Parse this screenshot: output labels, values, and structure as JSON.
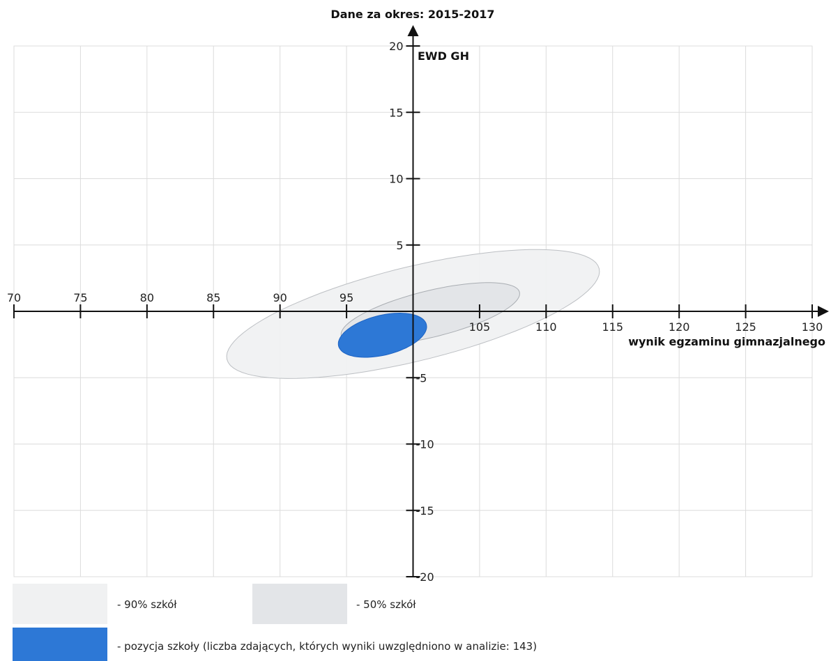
{
  "chart_data": {
    "type": "scatter",
    "title": "Dane za okres: 2015-2017",
    "xlabel": "wynik egzaminu gimnazjalnego",
    "ylabel": "EWD GH",
    "xlim": [
      70,
      130
    ],
    "ylim": [
      -20,
      20
    ],
    "x_ticks": [
      70,
      75,
      80,
      85,
      90,
      95,
      100,
      105,
      110,
      115,
      120,
      125,
      130
    ],
    "y_ticks": [
      -20,
      -15,
      -10,
      -5,
      0,
      5,
      10,
      15,
      20
    ],
    "x_tick_labels": [
      "70",
      "75",
      "80",
      "85",
      "90",
      "95",
      "",
      "105",
      "110",
      "115",
      "120",
      "125",
      "130"
    ],
    "y_tick_labels": [
      "-20",
      "-15",
      "-10",
      "-5",
      "",
      "5",
      "10",
      "15",
      "20"
    ],
    "grid": true,
    "axes_cross_at": [
      100,
      0
    ],
    "ellipses": [
      {
        "name": "- 90% szkół",
        "center": [
          100,
          -0.2
        ],
        "semi_major": 14.4,
        "semi_minor": 3.55,
        "color": "#f0f1f2",
        "stroke": "#bcbfc3"
      },
      {
        "name": "- 50% szkół",
        "center": [
          101.3,
          -0.2
        ],
        "semi_major": 6.9,
        "semi_minor": 1.75,
        "color": "#e2e4e7",
        "stroke": "#a9adb2"
      },
      {
        "name": "- pozycja szkoły (liczba zdających, których wyniki uwzględniono w analizie: 143)",
        "center": [
          97.7,
          -1.8
        ],
        "semi_major": 3.4,
        "semi_minor": 1.5,
        "color": "#2d78d6",
        "stroke": "#1d63c3"
      }
    ],
    "legend": [
      {
        "label": "- 90% szkół",
        "color": "#f0f1f2"
      },
      {
        "label": "- 50% szkół",
        "color": "#e3e5e8"
      },
      {
        "label": "- pozycja szkoły (liczba zdających, których wyniki uwzględniono w analizie: 143)",
        "color": "#2d78d6"
      }
    ]
  }
}
